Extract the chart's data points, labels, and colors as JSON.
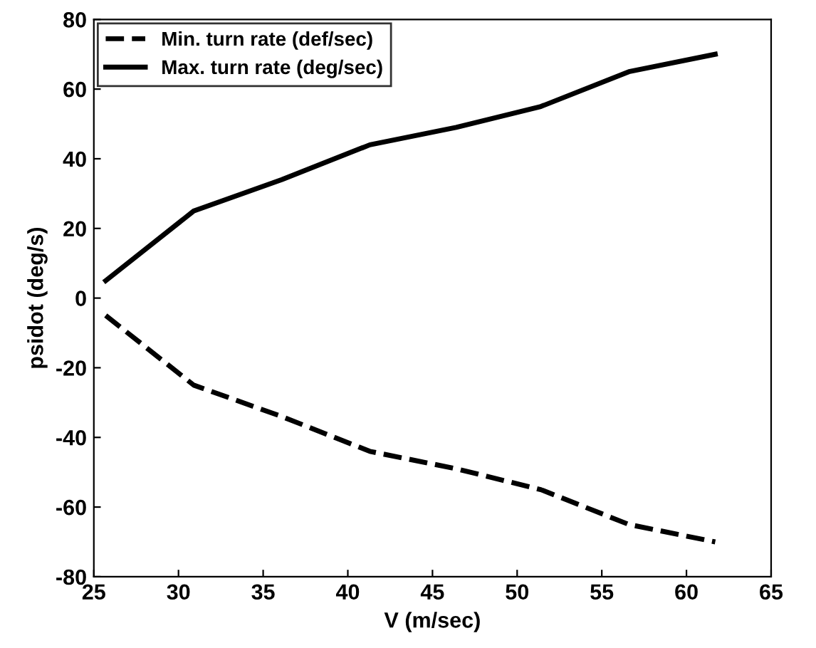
{
  "chart_data": {
    "type": "line",
    "xlabel": "V (m/sec)",
    "ylabel": "psidot (deg/s)",
    "x": [
      25.7,
      30.9,
      36.1,
      41.3,
      46.4,
      51.4,
      56.6,
      61.7
    ],
    "series": [
      {
        "name": "Min. turn rate (def/sec)",
        "color": "#000000",
        "line_style": "dashed",
        "values": [
          -5,
          -25,
          -34,
          -44,
          -49,
          -55,
          -65,
          -70
        ]
      },
      {
        "name": "Max. turn rate (deg/sec)",
        "color": "#000000",
        "line_style": "solid",
        "values": [
          5,
          25,
          34,
          44,
          49,
          55,
          65,
          70
        ]
      }
    ],
    "xlim": [
      25,
      65
    ],
    "xticks": [
      25,
      30,
      35,
      40,
      45,
      50,
      55,
      60,
      65
    ],
    "ylim": [
      -80,
      80
    ],
    "yticks": [
      -80,
      -60,
      -40,
      -20,
      0,
      20,
      40,
      60,
      80
    ],
    "legend": "top left",
    "grid": false
  }
}
